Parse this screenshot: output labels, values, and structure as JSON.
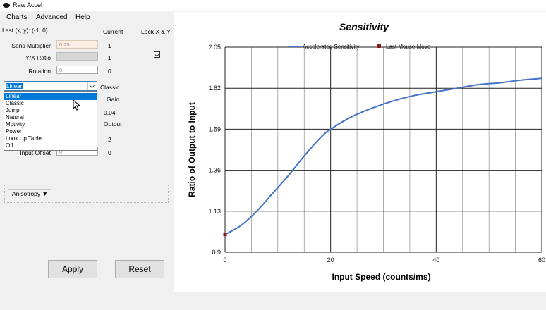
{
  "window": {
    "title": "Raw Accel"
  },
  "menu": {
    "items": [
      "Charts",
      "Advanced",
      "Help"
    ]
  },
  "panel": {
    "last_xy": "Last (x, y): (-1, 0)",
    "col_current": "Current",
    "col_lock": "Lock X & Y",
    "sens_label": "Sens Multiplier",
    "sens_value": "0.25",
    "sens_current": "1",
    "yx_label": "Y/X Ratio",
    "yx_current": "1",
    "rotation_label": "Rotation",
    "rotation_value": "0",
    "rotation_current": "0",
    "accel_selected": "Linear",
    "accel_current": "Classic",
    "gain_label": "Gain",
    "accel_rate_current": "0.04",
    "output_label": "Output",
    "exponent_current": "2",
    "input_offset_label": "Input Offset",
    "input_offset_value": "0",
    "input_offset_current": "0",
    "dropdown_options": [
      "Linear",
      "Classic",
      "Jump",
      "Natural",
      "Motivity",
      "Power",
      "Look Up Table",
      "Off"
    ],
    "anisotropy_label": "Anisotropy ▼",
    "apply_label": "Apply",
    "reset_label": "Reset"
  },
  "chart_data": {
    "type": "line",
    "title": "Sensitivity",
    "xlabel": "Input Speed (counts/ms)",
    "ylabel": "Ratio of Output to Input",
    "xlim": [
      0,
      60
    ],
    "ylim": [
      0.9,
      2.05
    ],
    "x_ticks": [
      "0",
      "20",
      "40",
      "60"
    ],
    "y_ticks": [
      "0.9",
      "1.13",
      "1.36",
      "1.59",
      "1.82",
      "2.05"
    ],
    "grid": true,
    "legend_position": "top",
    "series": [
      {
        "name": "Accelerated Sensitivity",
        "color": "#4472c4",
        "x": [
          0,
          3,
          6,
          9,
          12,
          15,
          18,
          20,
          24,
          28,
          32,
          36,
          40,
          44,
          48,
          52,
          56,
          60
        ],
        "y": [
          1.0,
          1.05,
          1.13,
          1.23,
          1.33,
          1.44,
          1.54,
          1.59,
          1.66,
          1.71,
          1.75,
          1.78,
          1.8,
          1.82,
          1.84,
          1.85,
          1.865,
          1.875
        ]
      },
      {
        "name": "Last Mouse Move",
        "color": "#8b1a1a",
        "marker": "square",
        "x": [
          0
        ],
        "y": [
          1.0
        ]
      }
    ]
  }
}
